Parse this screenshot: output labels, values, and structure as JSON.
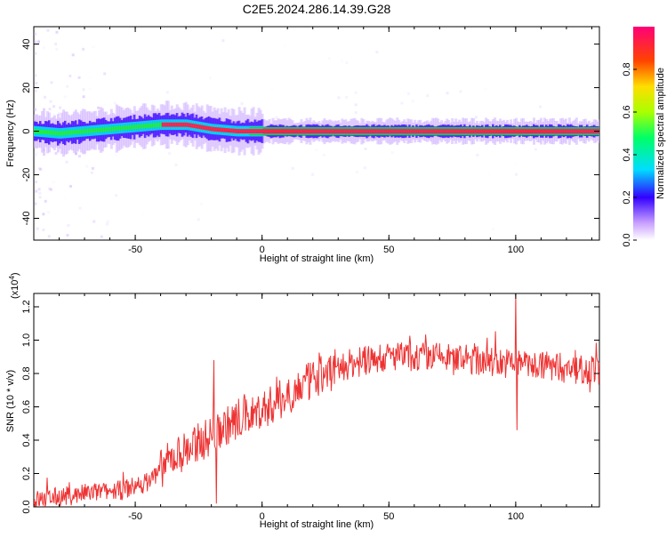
{
  "title": "C2E5.2024.286.14.39.G28",
  "colors": {
    "signal": "#ee3333",
    "axis": "#000000"
  },
  "chart_data": [
    {
      "type": "heatmap",
      "xlabel": "Height of straight line (km)",
      "ylabel": "Frequency (Hz)",
      "xlim": [
        -90,
        133
      ],
      "ylim": [
        -50,
        48
      ],
      "xticks": [
        -50,
        0,
        50,
        100
      ],
      "yticks": [
        -40,
        -20,
        0,
        20,
        40
      ],
      "ridge": [
        {
          "x": -90,
          "y": 0
        },
        {
          "x": -80,
          "y": -1
        },
        {
          "x": -70,
          "y": 0
        },
        {
          "x": -60,
          "y": 1
        },
        {
          "x": -50,
          "y": 2
        },
        {
          "x": -40,
          "y": 3
        },
        {
          "x": -30,
          "y": 3
        },
        {
          "x": -20,
          "y": 1
        },
        {
          "x": -10,
          "y": 0
        },
        {
          "x": 0,
          "y": 0
        },
        {
          "x": 133,
          "y": 0
        }
      ],
      "colorbar": {
        "label": "Normalized spectral amplitude",
        "range": [
          0,
          1
        ],
        "ticks": [
          "0.0",
          "0.2",
          "0.4",
          "0.6",
          "0.8"
        ]
      }
    },
    {
      "type": "line",
      "xlabel": "Height of straight line (km)",
      "ylabel": "SNR (10 * v/v)",
      "scale_note": "(x10",
      "scale_exp": "4",
      "scale_close": ")",
      "xlim": [
        -90,
        133
      ],
      "ylim": [
        0,
        1.28
      ],
      "xticks": [
        -50,
        0,
        50,
        100
      ],
      "yticks": [
        "0.0",
        "0.2",
        "0.4",
        "0.6",
        "0.8",
        "1.0",
        "1.2"
      ],
      "trend": [
        {
          "x": -90,
          "y": 0.04
        },
        {
          "x": -70,
          "y": 0.08
        },
        {
          "x": -55,
          "y": 0.1
        },
        {
          "x": -45,
          "y": 0.15
        },
        {
          "x": -35,
          "y": 0.3
        },
        {
          "x": -25,
          "y": 0.38
        },
        {
          "x": -15,
          "y": 0.48
        },
        {
          "x": -5,
          "y": 0.55
        },
        {
          "x": 5,
          "y": 0.62
        },
        {
          "x": 15,
          "y": 0.72
        },
        {
          "x": 25,
          "y": 0.8
        },
        {
          "x": 35,
          "y": 0.86
        },
        {
          "x": 50,
          "y": 0.9
        },
        {
          "x": 70,
          "y": 0.9
        },
        {
          "x": 90,
          "y": 0.87
        },
        {
          "x": 110,
          "y": 0.85
        },
        {
          "x": 133,
          "y": 0.82
        }
      ],
      "spikes": [
        {
          "x": -19,
          "y": 0.88
        },
        {
          "x": -18,
          "y": 0.02
        },
        {
          "x": 100,
          "y": 1.28
        },
        {
          "x": 100.5,
          "y": 0.46
        }
      ]
    }
  ]
}
